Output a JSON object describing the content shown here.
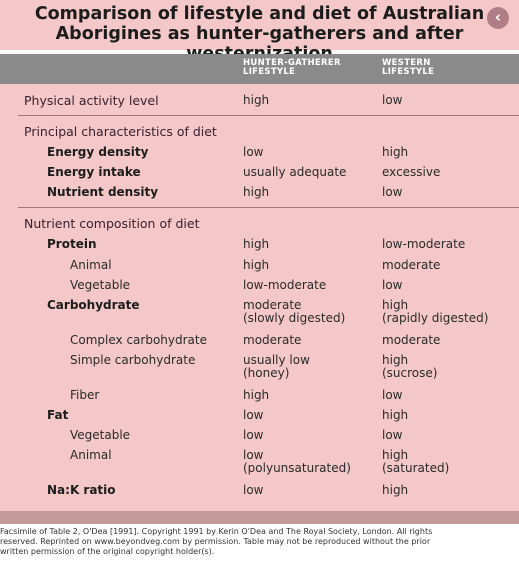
{
  "title": {
    "line1": "Comparison of lifestyle and diet of Australian",
    "line2": "Aborigines as hunter-gatherers and after westernization"
  },
  "back_icon": "chevron-left-icon",
  "columns": {
    "a_line1": "HUNTER-GATHERER",
    "a_line2": "LIFESTYLE",
    "b_line1": "WESTERN",
    "b_line2": "LIFESTYLE"
  },
  "physical": {
    "label": "Physical activity level",
    "a": "high",
    "b": "low"
  },
  "principal": {
    "heading": "Principal characteristics of diet",
    "rows": [
      {
        "label": "Energy density",
        "a": "low",
        "b": "high"
      },
      {
        "label": "Energy intake",
        "a": "usually adequate",
        "b": "excessive"
      },
      {
        "label": "Nutrient density",
        "a": "high",
        "b": "low"
      }
    ]
  },
  "nutrient": {
    "heading": "Nutrient composition of diet",
    "protein": {
      "label": "Protein",
      "a": "high",
      "b": "low-moderate"
    },
    "animal": {
      "label": "Animal",
      "a": "high",
      "b": "moderate"
    },
    "vegetable": {
      "label": "Vegetable",
      "a": "low-moderate",
      "b": "low"
    },
    "carbohydrate": {
      "label": "Carbohydrate",
      "a1": "moderate",
      "a2": "(slowly digested)",
      "b1": "high",
      "b2": "(rapidly digested)"
    },
    "complex": {
      "label": "Complex carbohydrate",
      "a": "moderate",
      "b": "moderate"
    },
    "simple": {
      "label": "Simple carbohydrate",
      "a1": "usually low",
      "a2": "(honey)",
      "b1": "high",
      "b2": "(sucrose)"
    },
    "fiber": {
      "label": "Fiber",
      "a": "high",
      "b": "low"
    },
    "fat": {
      "label": "Fat",
      "a": "low",
      "b": "high"
    },
    "fat_vegetable": {
      "label": "Vegetable",
      "a": "low",
      "b": "low"
    },
    "fat_animal": {
      "label": "Animal",
      "a1": "low",
      "a2": "(polyunsaturated)",
      "b1": "high",
      "b2": "(saturated)"
    },
    "nak": {
      "label": "Na:K ratio",
      "a": "low",
      "b": "high"
    }
  },
  "caption": {
    "line1": "Facsimile of Table 2, O'Dea [1991]. Copyright 1991 by Kerin O'Dea and The Royal Society, London. All rights",
    "line2": "reserved. Reprinted on www.beyondveg.com by permission. Table may not be reproduced without the prior",
    "line3": "written permission of the original copyright holder(s)."
  },
  "colors": {
    "table_bg": "#f4c8c8",
    "header_bar": "#8a8a8a",
    "footer_bar": "#c49a9a",
    "back_button": "#b07e86"
  }
}
